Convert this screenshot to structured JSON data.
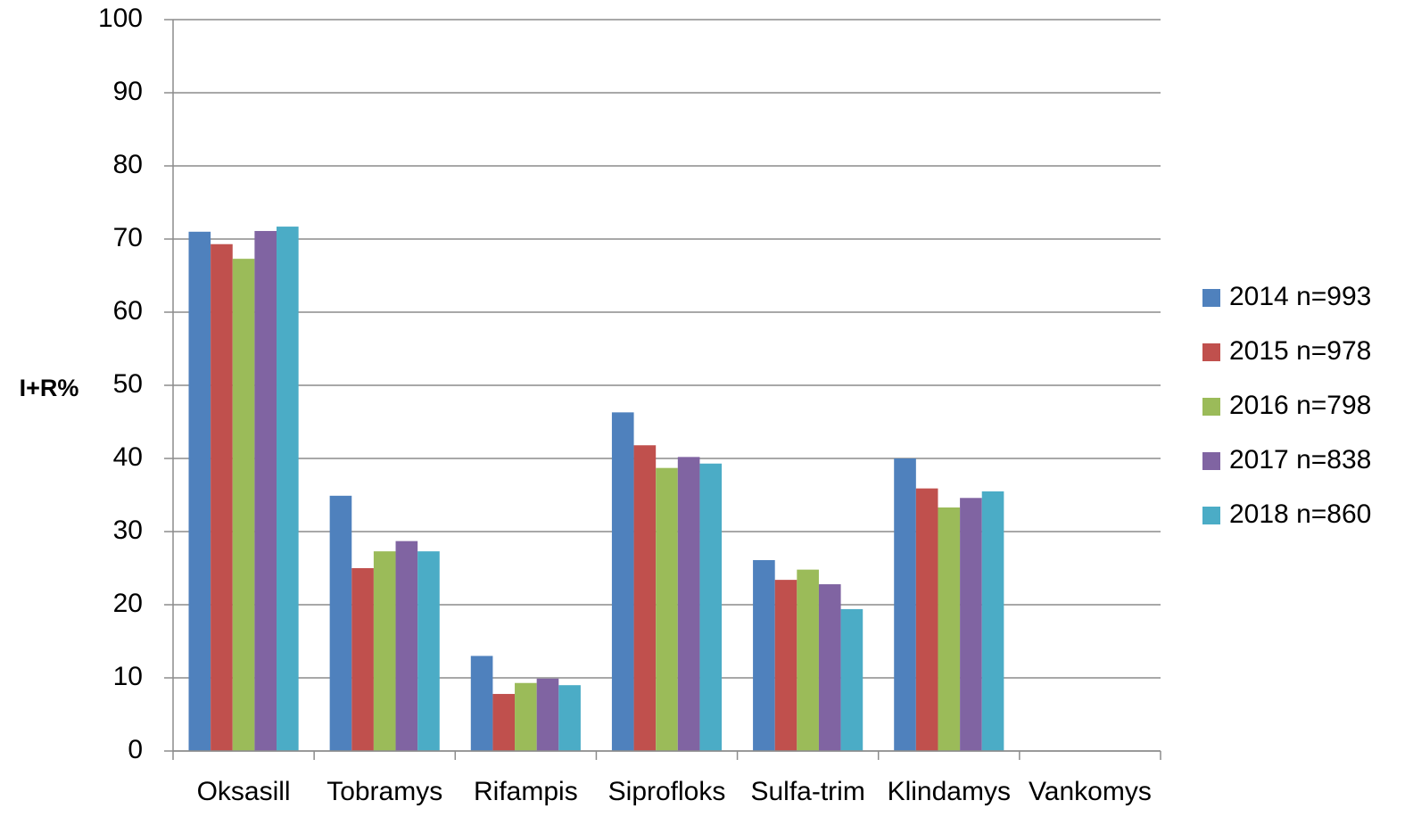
{
  "chart_data": {
    "type": "bar",
    "y_label": "I+R%",
    "categories": [
      "Oksasill",
      "Tobramys",
      "Rifampis",
      "Siprofloks",
      "Sulfa-trim",
      "Klindamys",
      "Vankomys"
    ],
    "series": [
      {
        "name": "2014 n=993",
        "color": "#4f81bd",
        "values": [
          71.0,
          34.9,
          13.0,
          46.3,
          26.1,
          40.0,
          0
        ]
      },
      {
        "name": "2015 n=978",
        "color": "#c0504d",
        "values": [
          69.3,
          25.0,
          7.8,
          41.8,
          23.4,
          35.9,
          0
        ]
      },
      {
        "name": "2016 n=798",
        "color": "#9bbb59",
        "values": [
          67.3,
          27.3,
          9.3,
          38.7,
          24.8,
          33.3,
          0
        ]
      },
      {
        "name": "2017 n=838",
        "color": "#8064a2",
        "values": [
          71.1,
          28.7,
          9.9,
          40.2,
          22.8,
          34.6,
          0
        ]
      },
      {
        "name": "2018 n=860",
        "color": "#4bacc6",
        "values": [
          71.7,
          27.3,
          9.0,
          39.3,
          19.4,
          35.5,
          0
        ]
      }
    ],
    "ylim": [
      0,
      100
    ],
    "yticks": [
      0,
      10,
      20,
      30,
      40,
      50,
      60,
      70,
      80,
      90,
      100
    ],
    "grid": true,
    "legend": "right"
  }
}
